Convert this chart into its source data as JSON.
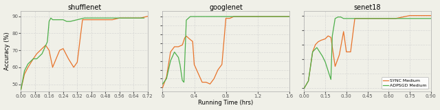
{
  "shufflenet": {
    "title": "shufflenet",
    "xlim": [
      0.0,
      0.72
    ],
    "xticks": [
      0.0,
      0.08,
      0.16,
      0.24,
      0.32,
      0.4,
      0.48,
      0.56,
      0.64,
      0.72
    ],
    "ylim": [
      46,
      93
    ],
    "yticks": [
      50,
      60,
      70,
      80,
      90
    ],
    "sync_x": [
      0.0,
      0.02,
      0.04,
      0.07,
      0.09,
      0.11,
      0.14,
      0.16,
      0.18,
      0.2,
      0.22,
      0.24,
      0.27,
      0.3,
      0.32,
      0.35,
      0.38,
      0.4,
      0.44,
      0.48,
      0.52,
      0.56,
      0.6,
      0.64,
      0.68,
      0.72
    ],
    "sync_y": [
      47,
      56,
      60,
      65,
      68,
      70,
      73,
      70,
      60,
      65,
      70,
      71,
      65,
      60,
      63,
      88,
      88,
      88,
      88,
      88,
      88,
      89,
      89,
      89,
      89,
      90
    ],
    "adp_x": [
      0.0,
      0.02,
      0.04,
      0.07,
      0.09,
      0.12,
      0.15,
      0.16,
      0.17,
      0.18,
      0.2,
      0.22,
      0.24,
      0.26,
      0.28,
      0.32,
      0.36,
      0.4,
      0.5,
      0.6,
      0.7
    ],
    "adp_y": [
      47,
      58,
      62,
      65,
      65,
      68,
      75,
      87,
      89,
      88,
      88,
      88,
      88,
      87,
      87,
      88,
      89,
      89,
      89,
      89,
      89
    ]
  },
  "googlenet": {
    "title": "googlenet",
    "xlim": [
      0.0,
      1.6
    ],
    "xticks": [
      0.0,
      0.4,
      0.8,
      1.2,
      1.6
    ],
    "ylim": [
      48,
      93
    ],
    "yticks": [
      50,
      55,
      60,
      65,
      70,
      75,
      80,
      85,
      90
    ],
    "sync_x": [
      0.0,
      0.05,
      0.1,
      0.15,
      0.2,
      0.25,
      0.28,
      0.3,
      0.35,
      0.38,
      0.4,
      0.45,
      0.5,
      0.55,
      0.6,
      0.65,
      0.7,
      0.75,
      0.8,
      0.85,
      0.9,
      1.0,
      1.1,
      1.2,
      1.4,
      1.6
    ],
    "sync_y": [
      50,
      56,
      70,
      73,
      73,
      74,
      78,
      79,
      77,
      76,
      63,
      58,
      53,
      53,
      52,
      55,
      60,
      63,
      89,
      89,
      90,
      90,
      90,
      90,
      90,
      90
    ],
    "adp_x": [
      0.0,
      0.05,
      0.1,
      0.15,
      0.2,
      0.22,
      0.25,
      0.27,
      0.3,
      0.35,
      0.4,
      0.5,
      0.6,
      0.7,
      0.8,
      0.9,
      1.0,
      1.1,
      1.2,
      1.4,
      1.6
    ],
    "adp_y": [
      52,
      55,
      65,
      70,
      67,
      63,
      54,
      53,
      88,
      90,
      90,
      90,
      90,
      90,
      90,
      90,
      90,
      90,
      90,
      90,
      90
    ]
  },
  "senet18": {
    "title": "senet18",
    "xlim": [
      0.0,
      0.9
    ],
    "xticks": [
      0.0,
      0.15,
      0.3,
      0.45,
      0.6,
      0.75,
      0.9
    ],
    "ylim": [
      38,
      93
    ],
    "yticks": [
      40,
      50,
      60,
      70,
      80,
      90
    ],
    "sync_x": [
      0.0,
      0.03,
      0.06,
      0.08,
      0.1,
      0.12,
      0.15,
      0.17,
      0.19,
      0.22,
      0.25,
      0.28,
      0.3,
      0.33,
      0.36,
      0.4,
      0.45,
      0.5,
      0.55,
      0.6,
      0.65,
      0.7,
      0.75,
      0.8,
      0.85,
      0.9
    ],
    "sync_y": [
      40,
      45,
      65,
      70,
      72,
      73,
      74,
      76,
      75,
      55,
      63,
      79,
      65,
      65,
      88,
      88,
      88,
      88,
      88,
      88,
      88,
      89,
      90,
      90,
      90,
      90
    ],
    "adp_x": [
      0.0,
      0.03,
      0.06,
      0.09,
      0.11,
      0.13,
      0.15,
      0.17,
      0.19,
      0.2,
      0.22,
      0.24,
      0.26,
      0.28,
      0.3,
      0.35,
      0.4,
      0.5,
      0.6,
      0.7,
      0.8,
      0.9
    ],
    "adp_y": [
      40,
      45,
      65,
      68,
      65,
      62,
      58,
      52,
      46,
      76,
      88,
      89,
      89,
      88,
      88,
      88,
      88,
      88,
      88,
      88,
      88,
      88
    ]
  },
  "sync_color": "#E8732A",
  "adp_color": "#4DAF4A",
  "sync_label": "SYNC Medium",
  "adp_label": "ADPSGD Medium",
  "xlabel": "Running Time (hrs)",
  "ylabel": "Accuracy (%)",
  "linewidth": 0.9,
  "bg_color": "#f0f0e8",
  "grid_color": "#d8d8d0",
  "tick_color": "#555555"
}
